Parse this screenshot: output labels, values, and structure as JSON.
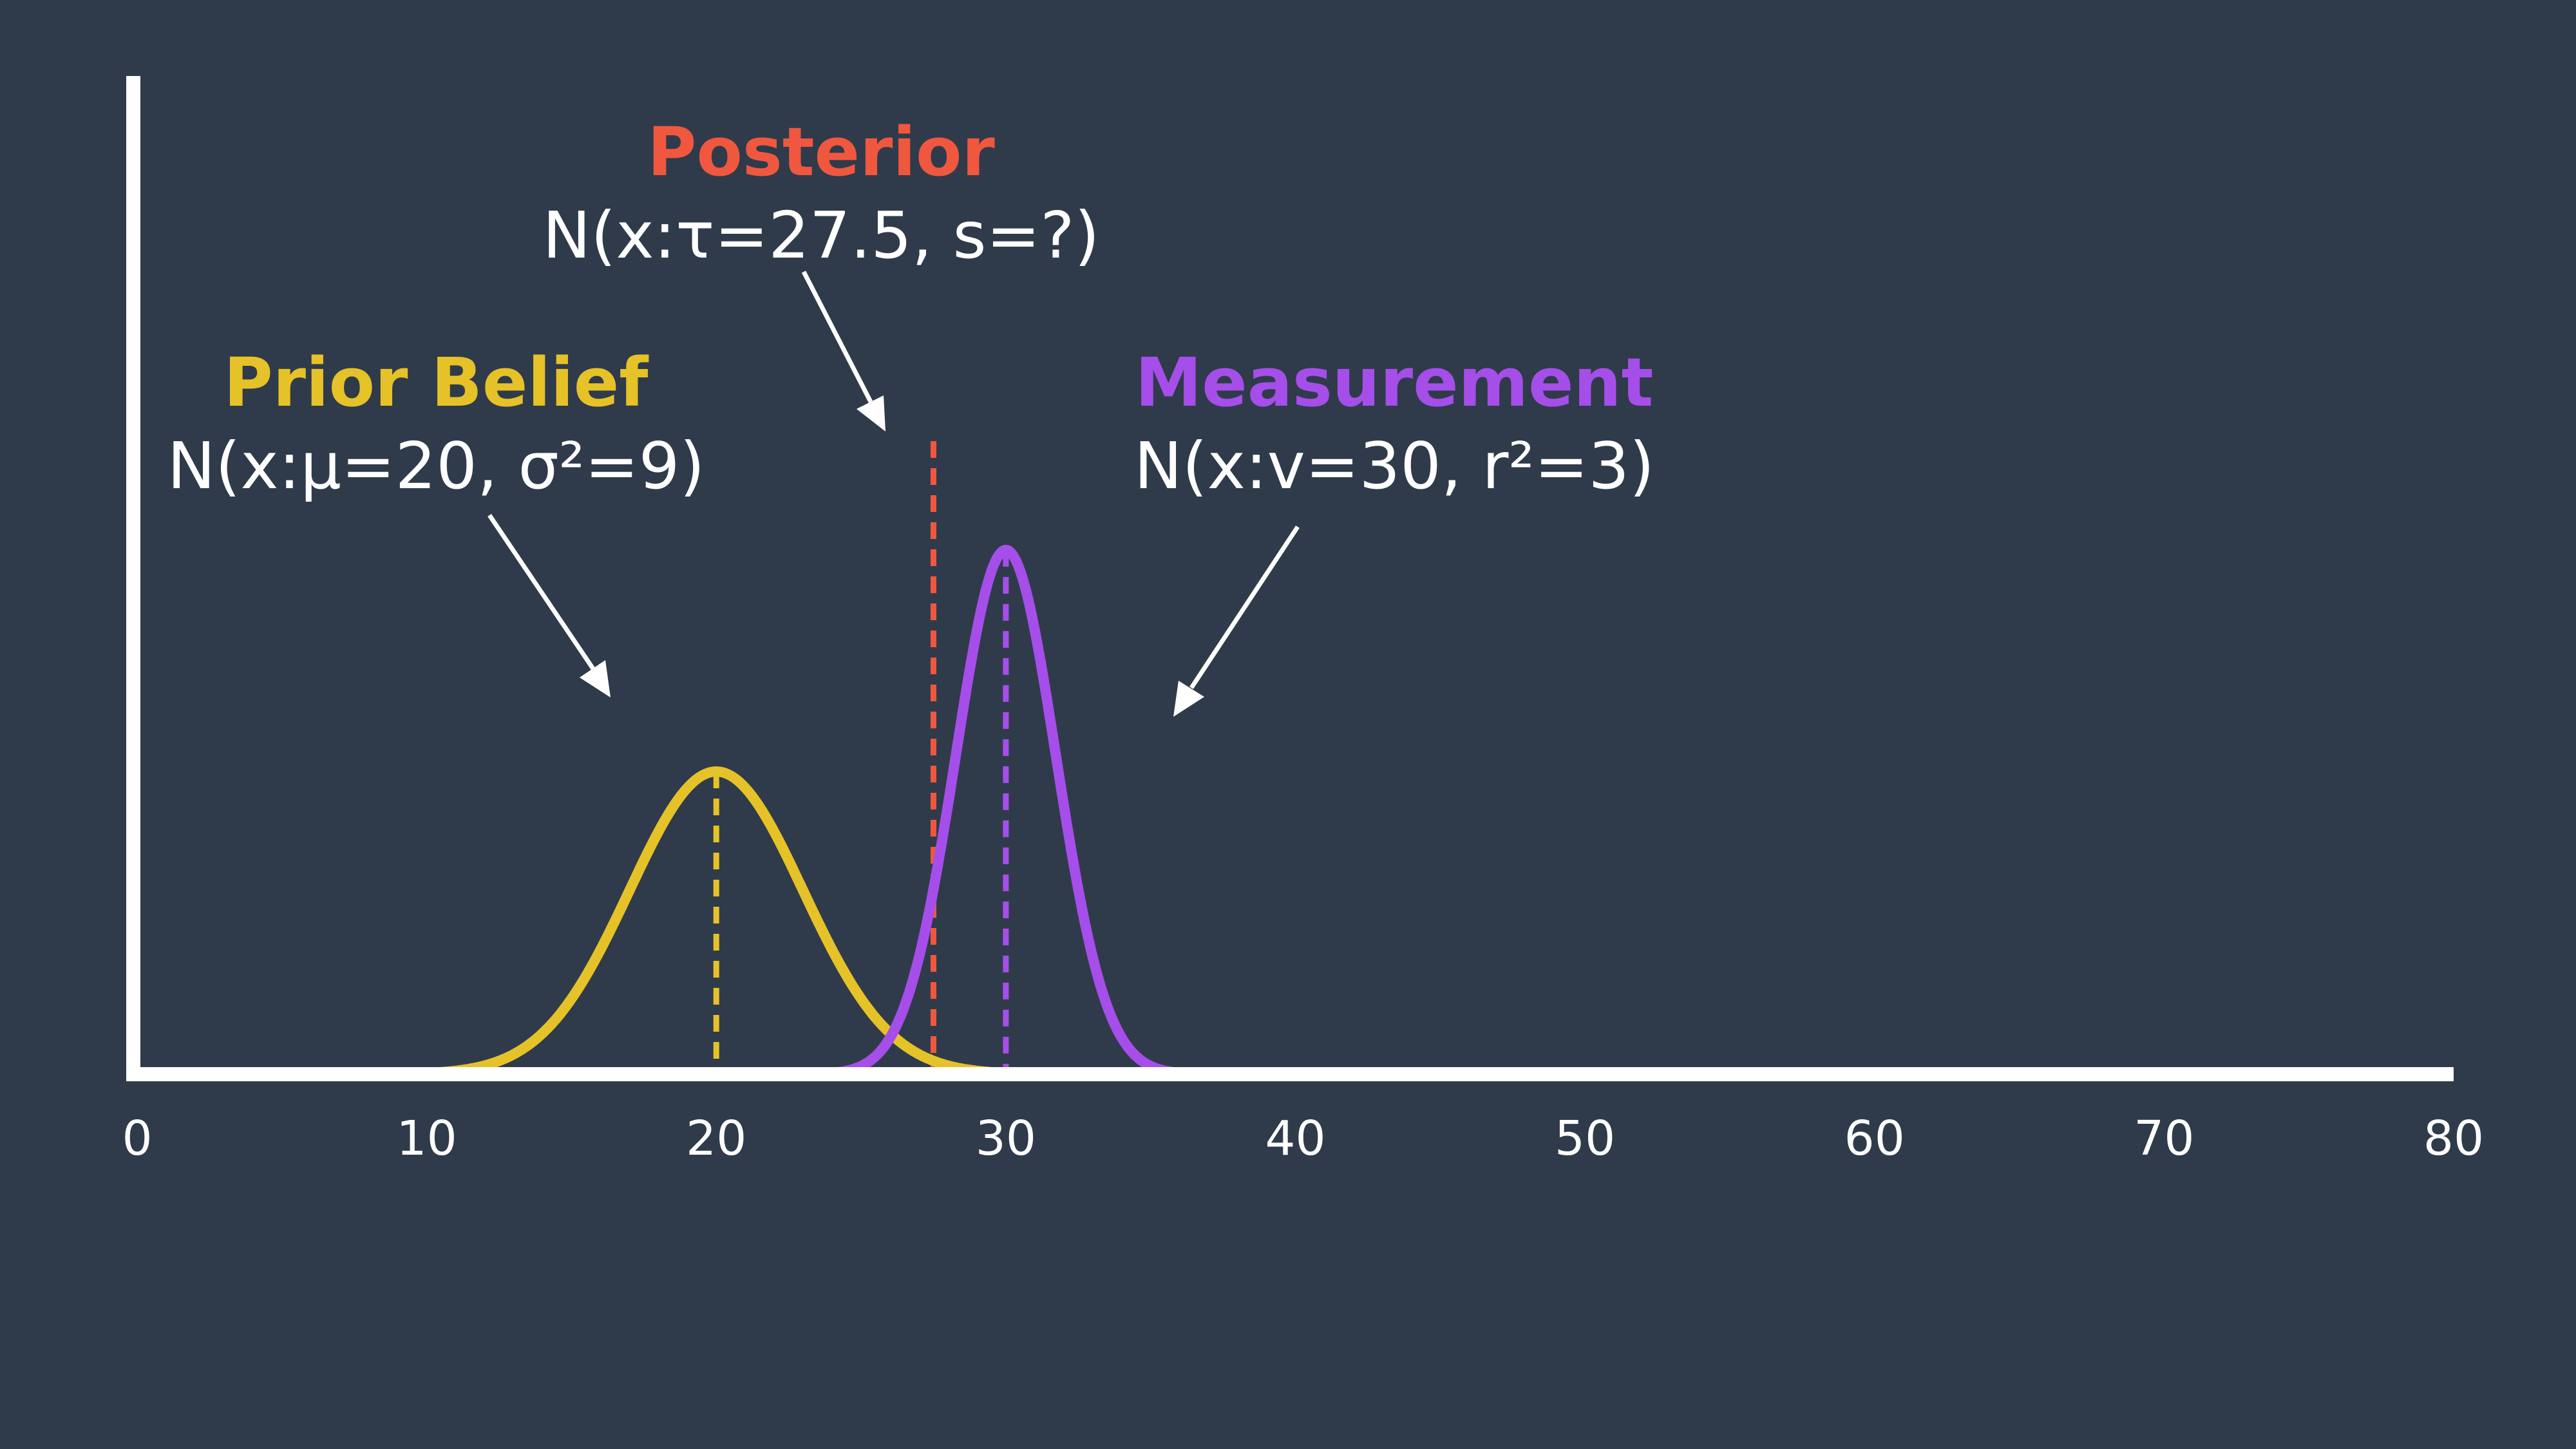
{
  "colors": {
    "background": "#2f3b4a",
    "axis": "#ffffff",
    "prior": "#e6c229",
    "measurement": "#a54ee9",
    "posterior": "#f0573f",
    "text": "#ffffff"
  },
  "chart_data": {
    "type": "line",
    "title": "",
    "xlabel": "",
    "ylabel": "",
    "xlim": [
      0,
      80
    ],
    "x_ticks": [
      "0",
      "10",
      "20",
      "30",
      "40",
      "50",
      "60",
      "70",
      "80"
    ],
    "grid": false,
    "series": [
      {
        "key": "prior",
        "distribution": "normal",
        "mean": 20,
        "variance": 9
      },
      {
        "key": "measurement",
        "distribution": "normal",
        "mean": 30,
        "variance": 3
      }
    ],
    "mean_markers": [
      {
        "key": "prior",
        "x": 20,
        "style": "dashed"
      },
      {
        "key": "measurement",
        "x": 30,
        "style": "dashed"
      },
      {
        "key": "posterior",
        "x": 27.5,
        "style": "dashed"
      }
    ],
    "annotations": {
      "posterior": {
        "title": "Posterior",
        "formula": "N(x:τ=27.5, s=?)"
      },
      "prior": {
        "title": "Prior Belief",
        "formula": "N(x:μ=20, σ²=9)"
      },
      "measurement": {
        "title": "Measurement",
        "formula": "N(x:v=30, r²=3)"
      }
    }
  }
}
